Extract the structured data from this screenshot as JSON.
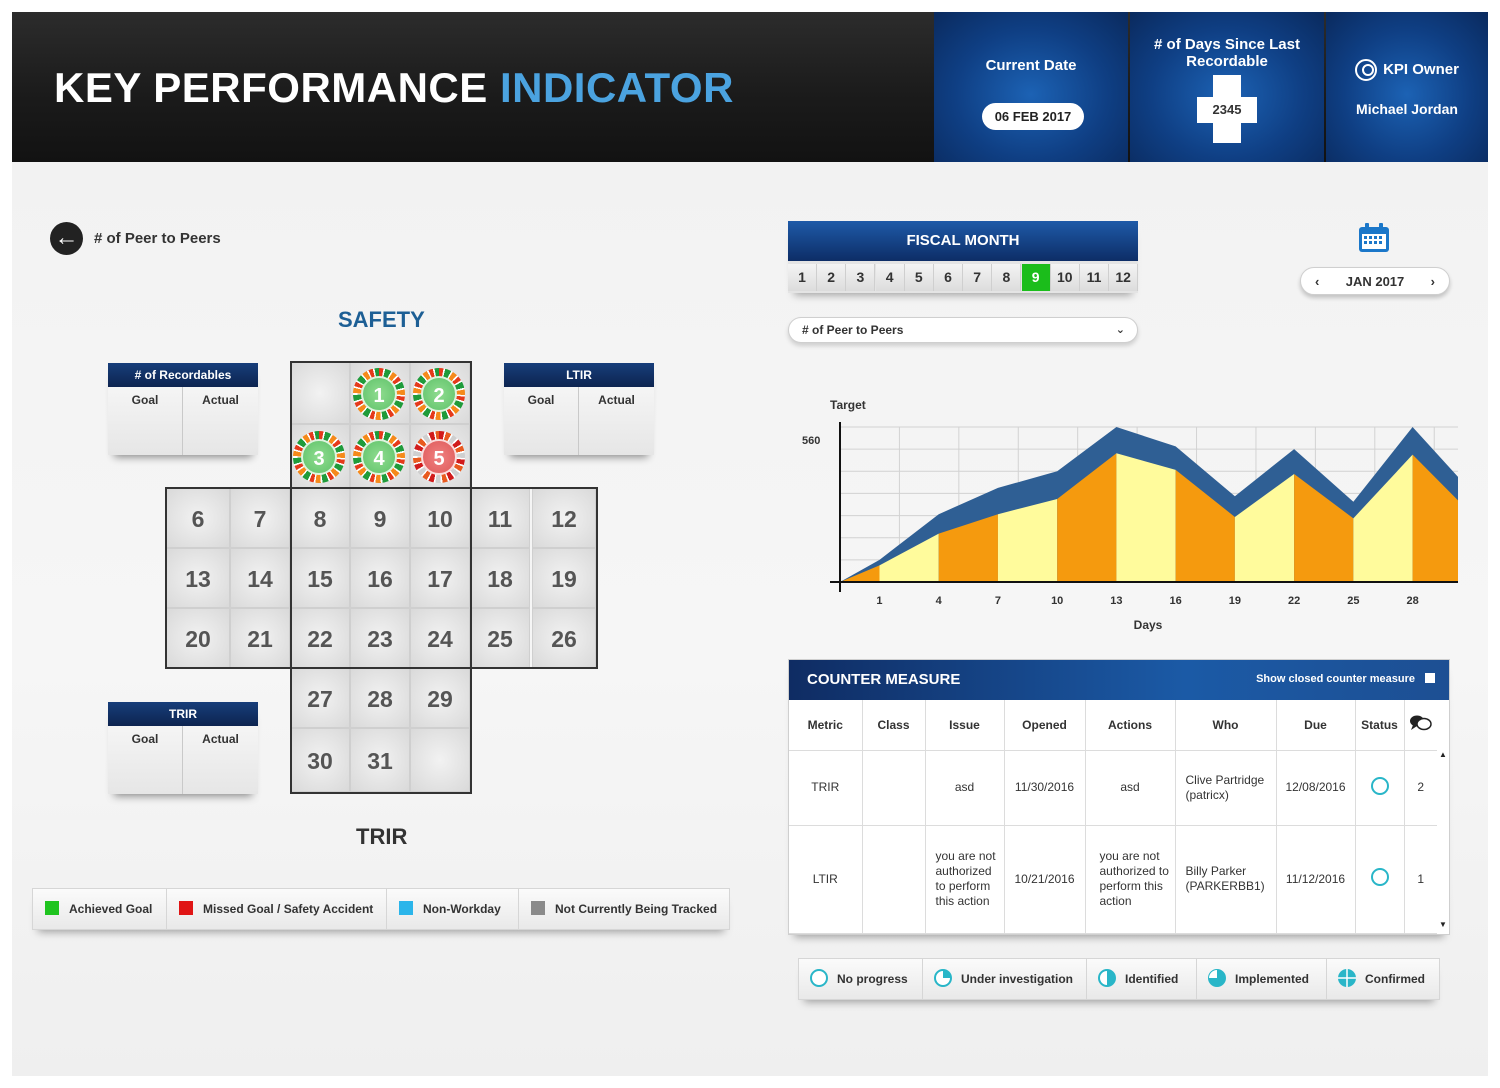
{
  "header": {
    "title_main": "KEY PERFORMANCE ",
    "title_accent": "INDICATOR",
    "current_date_label": "Current Date",
    "current_date": "06 FEB 2017",
    "days_label_1": "# of Days Since Last",
    "days_label_2": "Recordable",
    "days_value": "2345",
    "kpi_owner_label": "KPI Owner",
    "kpi_owner": "Michael Jordan"
  },
  "left": {
    "back_label": "# of Peer to Peers",
    "safety_title": "SAFETY",
    "trir_title": "TRIR",
    "cards": {
      "recordables": {
        "title": "# of Recordables",
        "goal": "Goal",
        "actual": "Actual"
      },
      "ltir": {
        "title": "LTIR",
        "goal": "Goal",
        "actual": "Actual"
      },
      "trir": {
        "title": "TRIR",
        "goal": "Goal",
        "actual": "Actual"
      }
    },
    "calendar": {
      "chips": [
        {
          "day": "1",
          "status": "achieved"
        },
        {
          "day": "2",
          "status": "achieved"
        },
        {
          "day": "3",
          "status": "achieved"
        },
        {
          "day": "4",
          "status": "achieved"
        },
        {
          "day": "5",
          "status": "missed"
        }
      ],
      "days": [
        "6",
        "7",
        "8",
        "9",
        "10",
        "11",
        "12",
        "13",
        "14",
        "15",
        "16",
        "17",
        "18",
        "19",
        "20",
        "21",
        "22",
        "23",
        "24",
        "25",
        "26",
        "27",
        "28",
        "29",
        "30",
        "31"
      ]
    }
  },
  "legend": {
    "achieved": "Achieved Goal",
    "missed": "Missed Goal / Safety Accident",
    "nonworkday": "Non-Workday",
    "not_tracked": "Not Currently Being Tracked",
    "colors": {
      "achieved": "#1fc41f",
      "missed": "#e01515",
      "nonworkday": "#2bb5ea",
      "not_tracked": "#8a8a8a"
    }
  },
  "fiscal": {
    "title": "FISCAL MONTH",
    "months": [
      "1",
      "2",
      "3",
      "4",
      "5",
      "6",
      "7",
      "8",
      "9",
      "10",
      "11",
      "12"
    ],
    "selected": "9"
  },
  "month_nav": {
    "label": "JAN 2017",
    "prev": "‹",
    "next": "›"
  },
  "dropdown": {
    "value": "# of Peer to Peers",
    "chevron": "⌄"
  },
  "chart_data": {
    "type": "area",
    "ylabel": "Target",
    "xlabel": "Days",
    "ytick": "560",
    "ylim": [
      0,
      560
    ],
    "xticks": [
      "1",
      "4",
      "7",
      "10",
      "13",
      "16",
      "19",
      "22",
      "25",
      "28"
    ],
    "x": [
      -1,
      1,
      4,
      7,
      10,
      13,
      16,
      19,
      22,
      25,
      28,
      30.3
    ],
    "series": [
      {
        "values": [
          0,
          80,
          245,
          340,
          400,
          560,
          490,
          310,
          480,
          290,
          560,
          380
        ]
      },
      {
        "values": [
          0,
          60,
          175,
          245,
          300,
          465,
          405,
          235,
          390,
          230,
          460,
          295
        ]
      }
    ],
    "colors": {
      "target": "#2f5f94",
      "orange": "#f59a0e",
      "yellow": "#fffb9c"
    }
  },
  "counter_measure": {
    "title": "COUNTER MEASURE",
    "show_closed": "Show closed counter measure",
    "columns": [
      "Metric",
      "Class",
      "Issue",
      "Opened",
      "Actions",
      "Who",
      "Due",
      "Status"
    ],
    "rows": [
      {
        "metric": "TRIR",
        "class": "",
        "issue": "asd",
        "opened": "11/30/2016",
        "actions": "asd",
        "who": "Clive Partridge (patricx)",
        "due": "12/08/2016",
        "status": "no-progress",
        "comments": "2"
      },
      {
        "metric": "LTIR",
        "class": "",
        "issue": "you are not authorized to perform this action",
        "opened": "10/21/2016",
        "actions": "you are not authorized to perform this action",
        "who": "Billy Parker (PARKERBB1)",
        "due": "11/12/2016",
        "status": "no-progress",
        "comments": "1"
      }
    ]
  },
  "cm_legend": {
    "no_progress": "No progress",
    "under_investigation": "Under investigation",
    "identified": "Identified",
    "implemented": "Implemented",
    "confirmed": "Confirmed"
  }
}
